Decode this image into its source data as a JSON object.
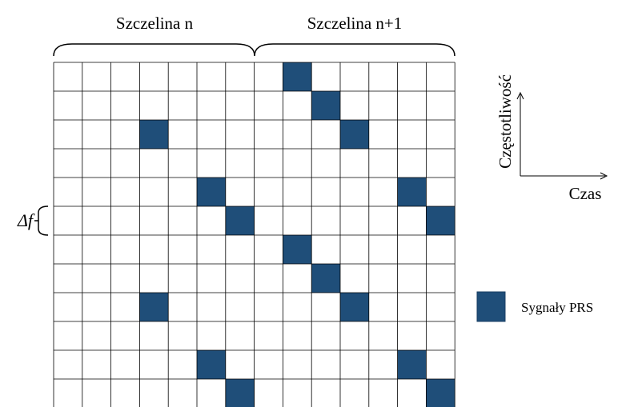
{
  "header": {
    "slot_n": "Szczelina n",
    "slot_n1": "Szczelina n+1"
  },
  "axes": {
    "frequency": "Częstotliwość",
    "time": "Czas"
  },
  "delta": "Δf",
  "legend": {
    "label": "Sygnały PRS"
  }
}
